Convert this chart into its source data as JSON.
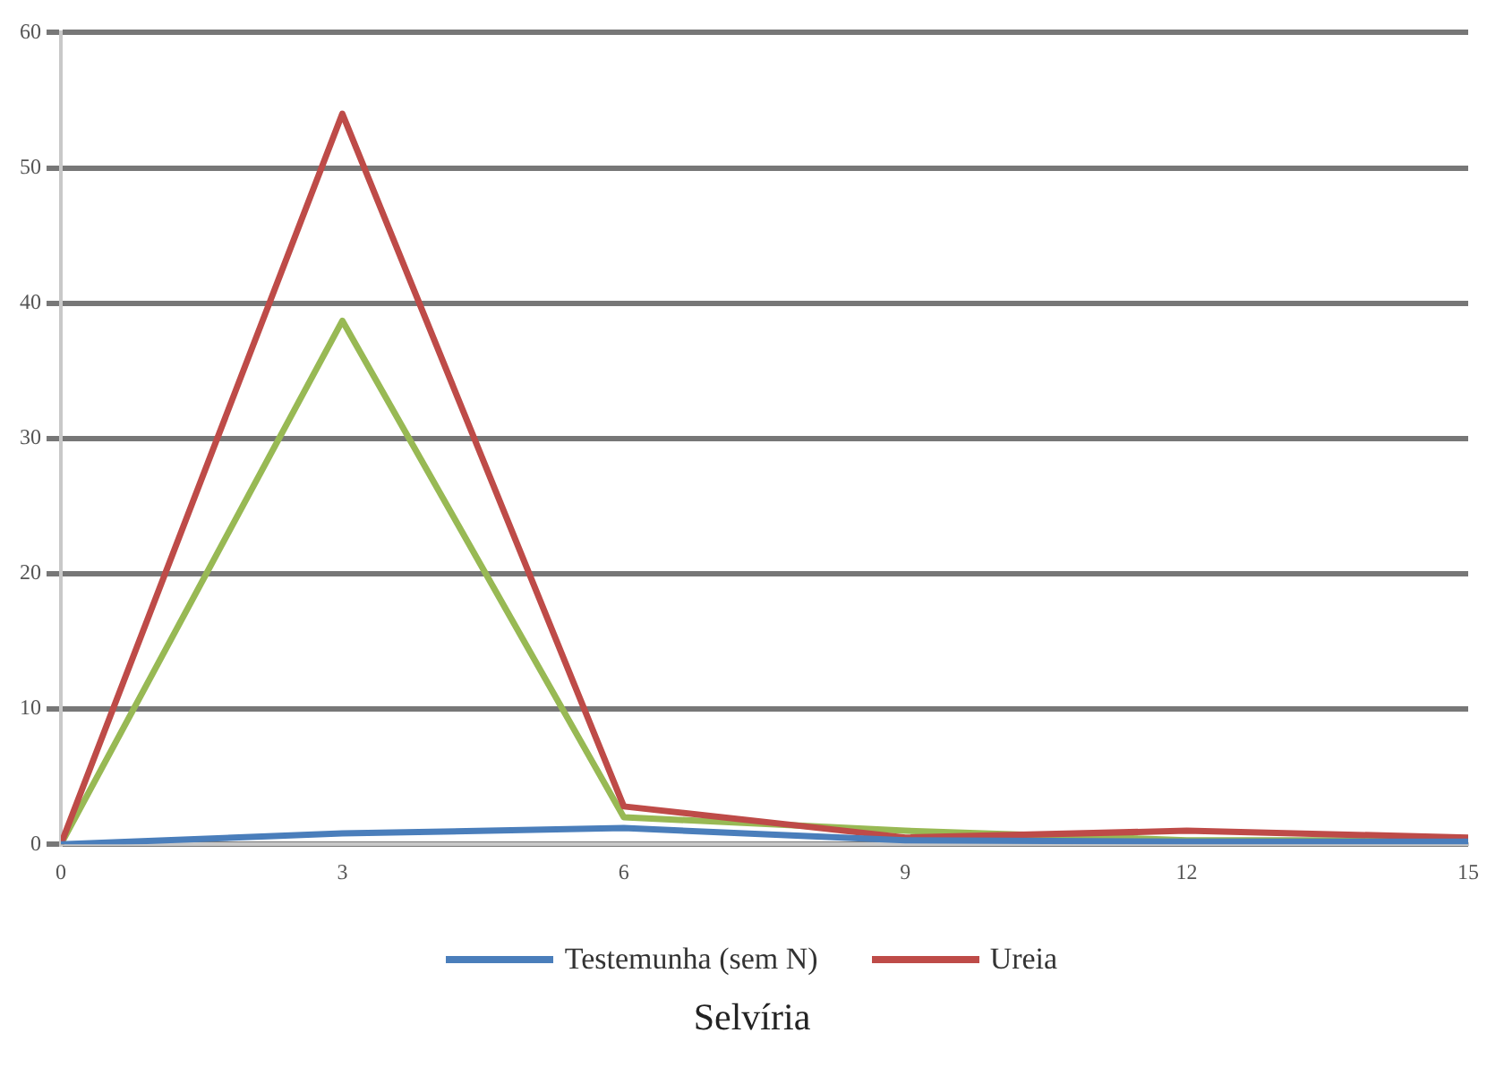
{
  "chart_data": {
    "type": "line",
    "title": "Selvíria",
    "x": [
      0,
      3,
      6,
      9,
      12,
      15
    ],
    "series": [
      {
        "name": "Testemunha (sem N)",
        "color": "#4a7ebb",
        "values": [
          0,
          0.8,
          1.2,
          0.3,
          0.2,
          0.2
        ]
      },
      {
        "name": "Ureia",
        "color": "#be4b48",
        "values": [
          0,
          54,
          2.8,
          0.5,
          1,
          0.5
        ]
      },
      {
        "color": "#98b954",
        "values": [
          0,
          38.7,
          2,
          1,
          0.3,
          0.3
        ]
      }
    ],
    "xlim": [
      0,
      15
    ],
    "xticks": [
      0,
      3,
      6,
      9,
      12,
      15
    ],
    "ylim": [
      0,
      60
    ],
    "yticks": [
      0,
      10,
      20,
      30,
      40,
      50,
      60
    ],
    "grid": "y",
    "legend": "bottom",
    "marker": "none",
    "line_style": "solid"
  }
}
